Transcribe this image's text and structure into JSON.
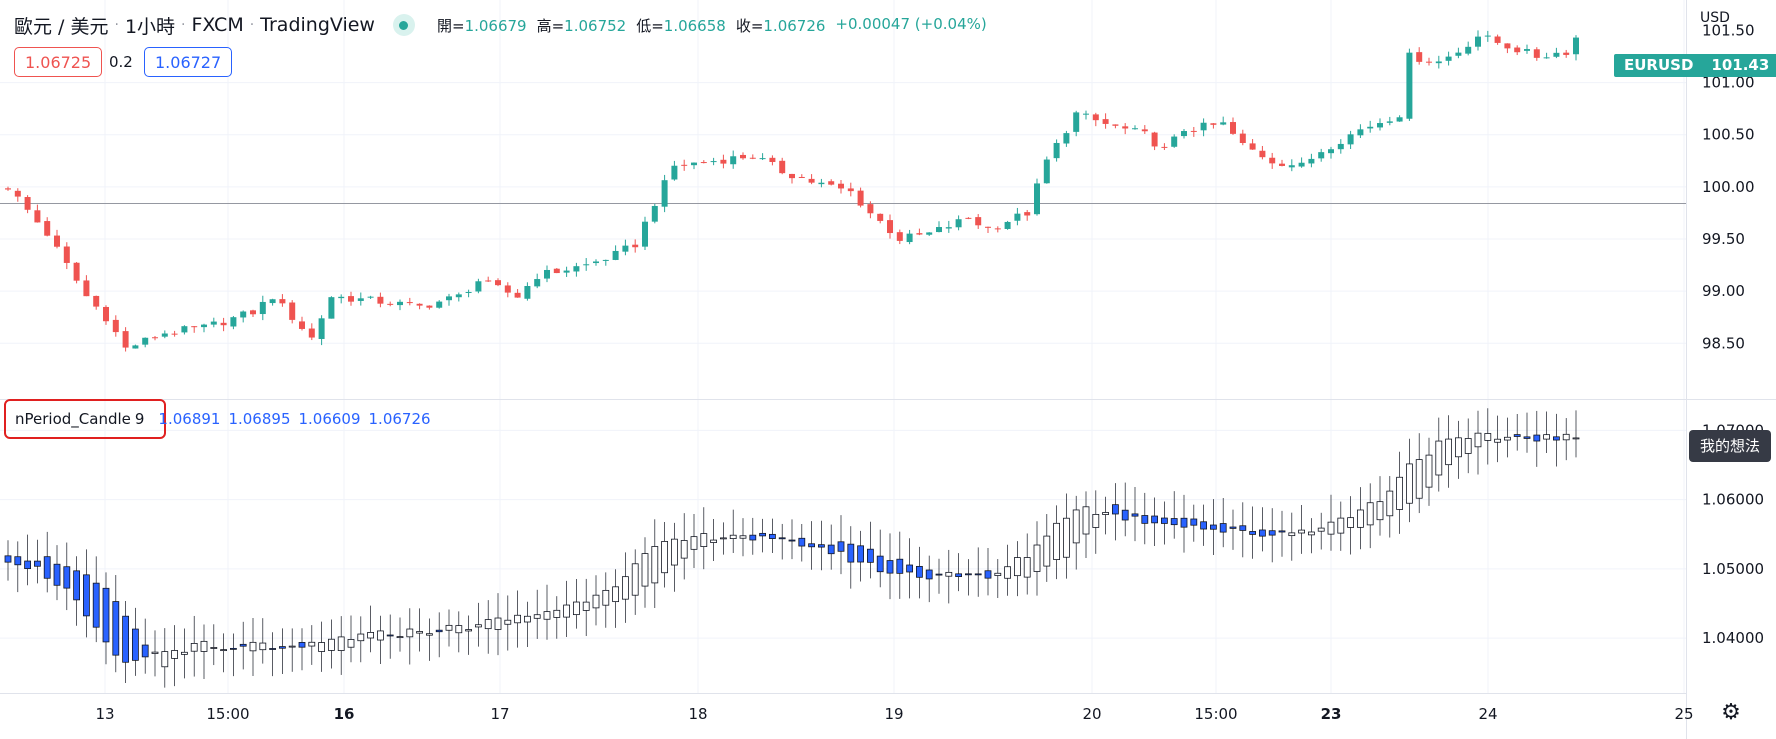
{
  "header": {
    "symbol": "歐元 / 美元",
    "interval": "1小時",
    "broker": "FXCM",
    "platform": "TradingView",
    "separator": "·",
    "ohlc": {
      "open_label": "開=",
      "open": "1.06679",
      "high_label": "高=",
      "high": "1.06752",
      "low_label": "低=",
      "low": "1.06658",
      "close_label": "收=",
      "close": "1.06726",
      "change": "+0.00047 (+0.04%)"
    }
  },
  "trade": {
    "sell_price": "1.06725",
    "spread": "0.2",
    "buy_price": "1.06727"
  },
  "indicator": {
    "name": "nPeriod_Candle",
    "param": "9",
    "values": [
      "1.06891",
      "1.06895",
      "1.06609",
      "1.06726"
    ]
  },
  "price_axis": {
    "currency": "USD",
    "main_ticks": [
      "101.00",
      "100.50",
      "100.00",
      "99.50",
      "99.00",
      "98.50"
    ],
    "top_partial_tick": "101.50",
    "symbol_label": "EURUSD",
    "symbol_value": "101.43",
    "ind_ticks": [
      "1.07000",
      "1.06000",
      "1.05000",
      "1.04000"
    ],
    "note_label": "我的想法"
  },
  "time_axis": {
    "ticks": [
      {
        "label": "13",
        "bold": false
      },
      {
        "label": "15:00",
        "bold": false
      },
      {
        "label": "16",
        "bold": true
      },
      {
        "label": "17",
        "bold": false
      },
      {
        "label": "18",
        "bold": false
      },
      {
        "label": "19",
        "bold": false
      },
      {
        "label": "20",
        "bold": false
      },
      {
        "label": "15:00",
        "bold": false
      },
      {
        "label": "23",
        "bold": true
      },
      {
        "label": "24",
        "bold": false
      },
      {
        "label": "25",
        "bold": false
      }
    ]
  },
  "colors": {
    "up": "#26a69a",
    "down": "#ef5350",
    "ind_down": "#2962ff",
    "ind_up": "#ffffff",
    "grid": "#f0f3fa"
  },
  "icons": {
    "settings": "gear-icon",
    "live": "live-dot-icon"
  },
  "chart_data": [
    {
      "type": "candlestick",
      "name": "EURUSD",
      "ylim": [
        98.1,
        101.6
      ],
      "reference_line": 100.0,
      "close_path": [
        [
          0,
          100.0
        ],
        [
          4,
          99.55
        ],
        [
          8,
          98.95
        ],
        [
          10,
          98.75
        ],
        [
          12,
          98.45
        ],
        [
          16,
          98.6
        ],
        [
          20,
          98.65
        ],
        [
          25,
          98.8
        ],
        [
          27,
          98.95
        ],
        [
          29,
          98.75
        ],
        [
          31,
          98.55
        ],
        [
          33,
          98.95
        ],
        [
          38,
          98.9
        ],
        [
          42,
          98.85
        ],
        [
          46,
          98.95
        ],
        [
          48,
          99.1
        ],
        [
          52,
          98.95
        ],
        [
          54,
          99.15
        ],
        [
          59,
          99.25
        ],
        [
          62,
          99.35
        ],
        [
          64,
          99.45
        ],
        [
          66,
          99.85
        ],
        [
          68,
          100.2
        ],
        [
          72,
          100.25
        ],
        [
          76,
          100.3
        ],
        [
          79,
          100.15
        ],
        [
          82,
          100.05
        ],
        [
          86,
          99.95
        ],
        [
          88,
          99.75
        ],
        [
          91,
          99.5
        ],
        [
          94,
          99.55
        ],
        [
          98,
          99.7
        ],
        [
          100,
          99.6
        ],
        [
          104,
          99.75
        ],
        [
          106,
          100.25
        ],
        [
          109,
          100.7
        ],
        [
          112,
          100.6
        ],
        [
          116,
          100.5
        ],
        [
          118,
          100.35
        ],
        [
          120,
          100.55
        ],
        [
          124,
          100.6
        ],
        [
          126,
          100.4
        ],
        [
          129,
          100.25
        ],
        [
          132,
          100.2
        ],
        [
          134,
          100.35
        ],
        [
          138,
          100.55
        ],
        [
          142,
          100.7
        ],
        [
          143,
          101.25
        ],
        [
          146,
          101.2
        ],
        [
          148,
          101.3
        ],
        [
          150,
          101.45
        ],
        [
          153,
          101.35
        ],
        [
          156,
          101.25
        ],
        [
          159,
          101.3
        ],
        [
          160,
          101.43
        ]
      ],
      "bars": 161
    },
    {
      "type": "candlestick",
      "name": "nPeriod_Candle",
      "period": 9,
      "ylim": [
        1.0325,
        1.0715
      ],
      "close_path": [
        [
          0,
          1.0515
        ],
        [
          3,
          1.05
        ],
        [
          6,
          1.047
        ],
        [
          8,
          1.043
        ],
        [
          10,
          1.039
        ],
        [
          12,
          1.036
        ],
        [
          14,
          1.0375
        ],
        [
          16,
          1.038
        ],
        [
          18,
          1.0385
        ],
        [
          20,
          1.039
        ],
        [
          22,
          1.038
        ],
        [
          24,
          1.0385
        ],
        [
          26,
          1.0395
        ],
        [
          28,
          1.038
        ],
        [
          30,
          1.0385
        ],
        [
          34,
          1.04
        ],
        [
          38,
          1.0405
        ],
        [
          42,
          1.041
        ],
        [
          46,
          1.0415
        ],
        [
          50,
          1.0425
        ],
        [
          54,
          1.0435
        ],
        [
          58,
          1.045
        ],
        [
          62,
          1.048
        ],
        [
          66,
          1.053
        ],
        [
          70,
          1.0545
        ],
        [
          74,
          1.055
        ],
        [
          78,
          1.054
        ],
        [
          82,
          1.0535
        ],
        [
          86,
          1.0515
        ],
        [
          90,
          1.0495
        ],
        [
          94,
          1.049
        ],
        [
          96,
          1.0495
        ],
        [
          100,
          1.0485
        ],
        [
          104,
          1.052
        ],
        [
          106,
          1.055
        ],
        [
          109,
          1.059
        ],
        [
          112,
          1.058
        ],
        [
          116,
          1.057
        ],
        [
          120,
          1.0565
        ],
        [
          124,
          1.0555
        ],
        [
          128,
          1.055
        ],
        [
          132,
          1.0555
        ],
        [
          136,
          1.057
        ],
        [
          140,
          1.06
        ],
        [
          143,
          1.065
        ],
        [
          146,
          1.068
        ],
        [
          150,
          1.069
        ],
        [
          155,
          1.069
        ],
        [
          160,
          1.069
        ]
      ],
      "bars": 161
    }
  ]
}
